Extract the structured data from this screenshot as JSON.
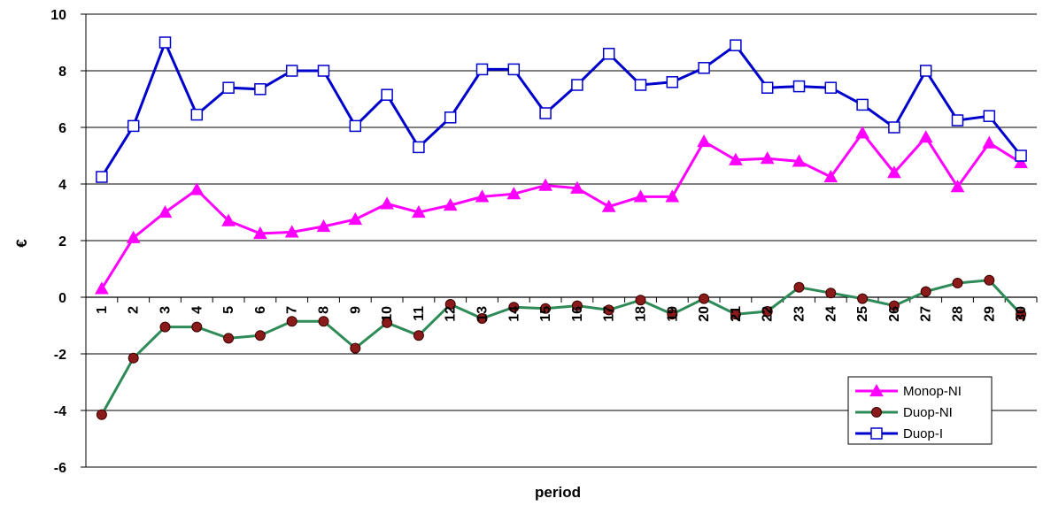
{
  "chart_data": {
    "type": "line",
    "title": "",
    "xlabel": "period",
    "ylabel": "€",
    "ylim": [
      -6,
      10
    ],
    "yticks": [
      -6,
      -4,
      -2,
      0,
      2,
      4,
      6,
      8,
      10
    ],
    "grid": "horizontal",
    "legend": "bottom-right",
    "x": [
      "1",
      "2",
      "3",
      "4",
      "5",
      "6",
      "7",
      "8",
      "9",
      "10",
      "11",
      "12",
      "13",
      "14",
      "15",
      "16",
      "17",
      "18",
      "19",
      "20",
      "21",
      "22",
      "23",
      "24",
      "25",
      "26",
      "27",
      "28",
      "29",
      "30"
    ],
    "series": [
      {
        "name": "Monop-NI",
        "color": "#ff00ff",
        "marker": "triangle",
        "values": [
          0.3,
          2.1,
          3.0,
          3.8,
          2.7,
          2.25,
          2.3,
          2.5,
          2.75,
          3.3,
          3.0,
          3.25,
          3.55,
          3.65,
          3.95,
          3.85,
          3.2,
          3.55,
          3.55,
          5.5,
          4.85,
          4.9,
          4.8,
          4.25,
          5.8,
          4.4,
          5.65,
          3.9,
          5.45,
          4.75
        ]
      },
      {
        "name": "Duop-NI",
        "color": "#2e8b57",
        "marker": "circle",
        "values": [
          -4.15,
          -2.15,
          -1.05,
          -1.05,
          -1.45,
          -1.35,
          -0.85,
          -0.85,
          -1.8,
          -0.9,
          -1.35,
          -0.25,
          -0.75,
          -0.35,
          -0.4,
          -0.3,
          -0.45,
          -0.1,
          -0.6,
          -0.05,
          -0.6,
          -0.5,
          0.35,
          0.15,
          -0.05,
          -0.3,
          0.2,
          0.5,
          0.6,
          -0.6
        ]
      },
      {
        "name": "Duop-I",
        "color": "#0000cc",
        "marker": "square",
        "values": [
          4.25,
          6.05,
          9.0,
          6.45,
          7.4,
          7.35,
          8.0,
          8.0,
          6.05,
          7.15,
          5.3,
          6.35,
          8.05,
          8.05,
          6.5,
          7.5,
          8.6,
          7.5,
          7.6,
          8.1,
          8.9,
          7.4,
          7.45,
          7.4,
          6.8,
          6.0,
          8.0,
          6.25,
          6.4,
          5.0
        ]
      }
    ]
  }
}
